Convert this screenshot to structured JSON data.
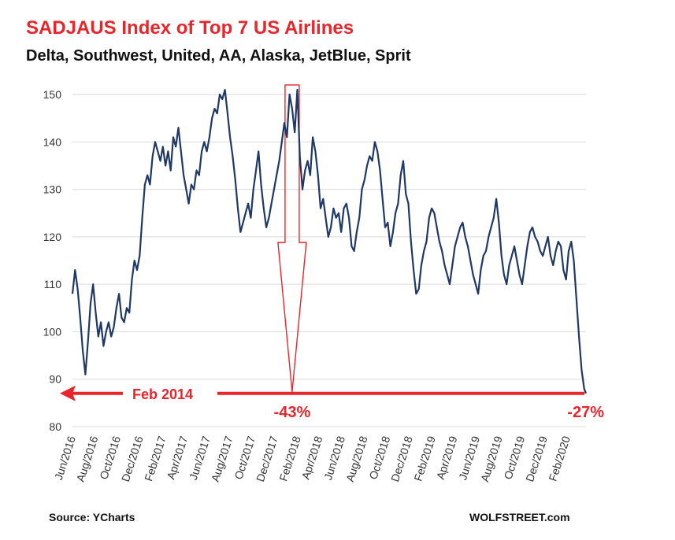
{
  "colors": {
    "title": "#e8252a",
    "line": "#1f3864",
    "annotation": "#e8252a",
    "grid": "#d9d9d9"
  },
  "footer": {
    "source": "Source: YCharts",
    "credit": "WOLFSTREET.com"
  },
  "chart_data": {
    "type": "line",
    "title": "SADJAUS Index of Top 7 US Airlines",
    "subtitle": "Delta, Southwest, United, AA, Alaska, JetBlue, Sprit",
    "xlabel": "",
    "ylabel": "",
    "ylim": [
      80,
      152
    ],
    "yticks": [
      80,
      90,
      100,
      110,
      120,
      130,
      140,
      150
    ],
    "grid": true,
    "x_range": [
      "2016-06-01",
      "2020-03-23"
    ],
    "xtick_labels": [
      "Jun/2016",
      "Aug/2016",
      "Oct/2016",
      "Dec/2016",
      "Feb/2017",
      "Apr/2017",
      "Jun/2017",
      "Aug/2017",
      "Oct/2017",
      "Dec/2017",
      "Feb/2018",
      "Apr/2018",
      "Jun/2018",
      "Aug/2018",
      "Oct/2018",
      "Dec/2018",
      "Feb/2019",
      "Apr/2019",
      "Jun/2019",
      "Aug/2019",
      "Oct/2019",
      "Dec/2019",
      "Feb/2020"
    ],
    "xtick_dates": [
      "2016-06-01",
      "2016-08-01",
      "2016-10-01",
      "2016-12-01",
      "2017-02-01",
      "2017-04-01",
      "2017-06-01",
      "2017-08-01",
      "2017-10-01",
      "2017-12-01",
      "2018-02-01",
      "2018-04-01",
      "2018-06-01",
      "2018-08-01",
      "2018-10-01",
      "2018-12-01",
      "2019-02-01",
      "2019-04-01",
      "2019-06-01",
      "2019-08-01",
      "2019-10-01",
      "2019-12-01",
      "2020-02-01"
    ],
    "series": [
      {
        "points": [
          [
            "2016-06-01",
            108
          ],
          [
            "2016-06-08",
            113
          ],
          [
            "2016-06-15",
            109
          ],
          [
            "2016-06-22",
            103
          ],
          [
            "2016-06-29",
            96
          ],
          [
            "2016-07-06",
            91
          ],
          [
            "2016-07-13",
            98
          ],
          [
            "2016-07-20",
            106
          ],
          [
            "2016-07-27",
            110
          ],
          [
            "2016-08-03",
            104
          ],
          [
            "2016-08-10",
            99
          ],
          [
            "2016-08-17",
            102
          ],
          [
            "2016-08-24",
            97
          ],
          [
            "2016-08-31",
            100
          ],
          [
            "2016-09-07",
            102
          ],
          [
            "2016-09-14",
            99
          ],
          [
            "2016-09-21",
            101
          ],
          [
            "2016-09-28",
            105
          ],
          [
            "2016-10-05",
            108
          ],
          [
            "2016-10-12",
            103
          ],
          [
            "2016-10-19",
            102
          ],
          [
            "2016-10-26",
            105
          ],
          [
            "2016-11-02",
            104
          ],
          [
            "2016-11-09",
            111
          ],
          [
            "2016-11-16",
            115
          ],
          [
            "2016-11-23",
            113
          ],
          [
            "2016-11-30",
            116
          ],
          [
            "2016-12-07",
            124
          ],
          [
            "2016-12-14",
            131
          ],
          [
            "2016-12-21",
            133
          ],
          [
            "2016-12-28",
            131
          ],
          [
            "2017-01-04",
            137
          ],
          [
            "2017-01-11",
            140
          ],
          [
            "2017-01-18",
            138
          ],
          [
            "2017-01-25",
            136
          ],
          [
            "2017-02-01",
            139
          ],
          [
            "2017-02-08",
            135
          ],
          [
            "2017-02-15",
            138
          ],
          [
            "2017-02-22",
            134
          ],
          [
            "2017-03-01",
            141
          ],
          [
            "2017-03-08",
            139
          ],
          [
            "2017-03-15",
            143
          ],
          [
            "2017-03-22",
            138
          ],
          [
            "2017-03-29",
            133
          ],
          [
            "2017-04-05",
            130
          ],
          [
            "2017-04-12",
            127
          ],
          [
            "2017-04-19",
            131
          ],
          [
            "2017-04-26",
            130
          ],
          [
            "2017-05-03",
            134
          ],
          [
            "2017-05-10",
            133
          ],
          [
            "2017-05-17",
            138
          ],
          [
            "2017-05-24",
            140
          ],
          [
            "2017-05-31",
            138
          ],
          [
            "2017-06-07",
            141
          ],
          [
            "2017-06-14",
            145
          ],
          [
            "2017-06-21",
            147
          ],
          [
            "2017-06-28",
            146
          ],
          [
            "2017-07-05",
            150
          ],
          [
            "2017-07-12",
            149
          ],
          [
            "2017-07-19",
            151
          ],
          [
            "2017-07-26",
            146
          ],
          [
            "2017-08-02",
            141
          ],
          [
            "2017-08-09",
            137
          ],
          [
            "2017-08-16",
            132
          ],
          [
            "2017-08-23",
            126
          ],
          [
            "2017-08-30",
            121
          ],
          [
            "2017-09-06",
            123
          ],
          [
            "2017-09-13",
            125
          ],
          [
            "2017-09-20",
            127
          ],
          [
            "2017-09-27",
            124
          ],
          [
            "2017-10-04",
            130
          ],
          [
            "2017-10-11",
            134
          ],
          [
            "2017-10-18",
            138
          ],
          [
            "2017-10-25",
            131
          ],
          [
            "2017-11-01",
            126
          ],
          [
            "2017-11-08",
            122
          ],
          [
            "2017-11-15",
            124
          ],
          [
            "2017-11-22",
            127
          ],
          [
            "2017-11-29",
            130
          ],
          [
            "2017-12-06",
            133
          ],
          [
            "2017-12-13",
            136
          ],
          [
            "2017-12-20",
            140
          ],
          [
            "2017-12-27",
            144
          ],
          [
            "2018-01-03",
            141
          ],
          [
            "2018-01-10",
            150
          ],
          [
            "2018-01-17",
            147
          ],
          [
            "2018-01-24",
            142
          ],
          [
            "2018-01-31",
            151
          ],
          [
            "2018-02-07",
            137
          ],
          [
            "2018-02-14",
            130
          ],
          [
            "2018-02-21",
            134
          ],
          [
            "2018-02-28",
            136
          ],
          [
            "2018-03-07",
            133
          ],
          [
            "2018-03-14",
            141
          ],
          [
            "2018-03-21",
            138
          ],
          [
            "2018-03-28",
            133
          ],
          [
            "2018-04-04",
            126
          ],
          [
            "2018-04-11",
            128
          ],
          [
            "2018-04-18",
            124
          ],
          [
            "2018-04-25",
            120
          ],
          [
            "2018-05-02",
            122
          ],
          [
            "2018-05-09",
            126
          ],
          [
            "2018-05-16",
            124
          ],
          [
            "2018-05-23",
            125
          ],
          [
            "2018-05-30",
            121
          ],
          [
            "2018-06-06",
            126
          ],
          [
            "2018-06-13",
            127
          ],
          [
            "2018-06-20",
            124
          ],
          [
            "2018-06-27",
            118
          ],
          [
            "2018-07-04",
            117
          ],
          [
            "2018-07-11",
            121
          ],
          [
            "2018-07-18",
            124
          ],
          [
            "2018-07-25",
            130
          ],
          [
            "2018-08-01",
            132
          ],
          [
            "2018-08-08",
            135
          ],
          [
            "2018-08-15",
            137
          ],
          [
            "2018-08-22",
            136
          ],
          [
            "2018-08-29",
            140
          ],
          [
            "2018-09-05",
            138
          ],
          [
            "2018-09-12",
            134
          ],
          [
            "2018-09-19",
            128
          ],
          [
            "2018-09-26",
            122
          ],
          [
            "2018-10-03",
            123
          ],
          [
            "2018-10-10",
            118
          ],
          [
            "2018-10-17",
            121
          ],
          [
            "2018-10-24",
            125
          ],
          [
            "2018-10-31",
            127
          ],
          [
            "2018-11-07",
            133
          ],
          [
            "2018-11-14",
            136
          ],
          [
            "2018-11-21",
            129
          ],
          [
            "2018-11-28",
            127
          ],
          [
            "2018-12-05",
            119
          ],
          [
            "2018-12-12",
            113
          ],
          [
            "2018-12-19",
            108
          ],
          [
            "2018-12-26",
            109
          ],
          [
            "2019-01-02",
            114
          ],
          [
            "2019-01-09",
            117
          ],
          [
            "2019-01-16",
            119
          ],
          [
            "2019-01-23",
            124
          ],
          [
            "2019-01-30",
            126
          ],
          [
            "2019-02-06",
            125
          ],
          [
            "2019-02-13",
            122
          ],
          [
            "2019-02-20",
            119
          ],
          [
            "2019-02-27",
            117
          ],
          [
            "2019-03-06",
            114
          ],
          [
            "2019-03-13",
            112
          ],
          [
            "2019-03-20",
            110
          ],
          [
            "2019-03-27",
            114
          ],
          [
            "2019-04-03",
            118
          ],
          [
            "2019-04-10",
            120
          ],
          [
            "2019-04-17",
            122
          ],
          [
            "2019-04-24",
            123
          ],
          [
            "2019-05-01",
            120
          ],
          [
            "2019-05-08",
            118
          ],
          [
            "2019-05-15",
            115
          ],
          [
            "2019-05-22",
            112
          ],
          [
            "2019-05-29",
            110
          ],
          [
            "2019-06-05",
            108
          ],
          [
            "2019-06-12",
            113
          ],
          [
            "2019-06-19",
            116
          ],
          [
            "2019-06-26",
            117
          ],
          [
            "2019-07-03",
            120
          ],
          [
            "2019-07-10",
            122
          ],
          [
            "2019-07-17",
            124
          ],
          [
            "2019-07-24",
            128
          ],
          [
            "2019-07-31",
            123
          ],
          [
            "2019-08-07",
            116
          ],
          [
            "2019-08-14",
            112
          ],
          [
            "2019-08-21",
            110
          ],
          [
            "2019-08-28",
            114
          ],
          [
            "2019-09-04",
            116
          ],
          [
            "2019-09-11",
            118
          ],
          [
            "2019-09-18",
            115
          ],
          [
            "2019-09-25",
            112
          ],
          [
            "2019-10-02",
            110
          ],
          [
            "2019-10-09",
            114
          ],
          [
            "2019-10-16",
            118
          ],
          [
            "2019-10-23",
            121
          ],
          [
            "2019-10-30",
            122
          ],
          [
            "2019-11-06",
            120
          ],
          [
            "2019-11-13",
            119
          ],
          [
            "2019-11-20",
            117
          ],
          [
            "2019-11-27",
            116
          ],
          [
            "2019-12-04",
            118
          ],
          [
            "2019-12-11",
            120
          ],
          [
            "2019-12-18",
            116
          ],
          [
            "2019-12-25",
            114
          ],
          [
            "2020-01-01",
            117
          ],
          [
            "2020-01-08",
            119
          ],
          [
            "2020-01-15",
            118
          ],
          [
            "2020-01-22",
            113
          ],
          [
            "2020-01-29",
            111
          ],
          [
            "2020-02-05",
            117
          ],
          [
            "2020-02-12",
            119
          ],
          [
            "2020-02-19",
            115
          ],
          [
            "2020-02-26",
            107
          ],
          [
            "2020-03-04",
            99
          ],
          [
            "2020-03-11",
            92
          ],
          [
            "2020-03-18",
            88
          ],
          [
            "2020-03-23",
            87
          ]
        ]
      }
    ],
    "annotations": {
      "reference_value": 87,
      "left_arrow_label": "Feb 2014",
      "down_arrow_from": {
        "date": "2018-01-17",
        "value": 151
      },
      "down_arrow_label": "-43%",
      "end_label": "-27%"
    }
  }
}
